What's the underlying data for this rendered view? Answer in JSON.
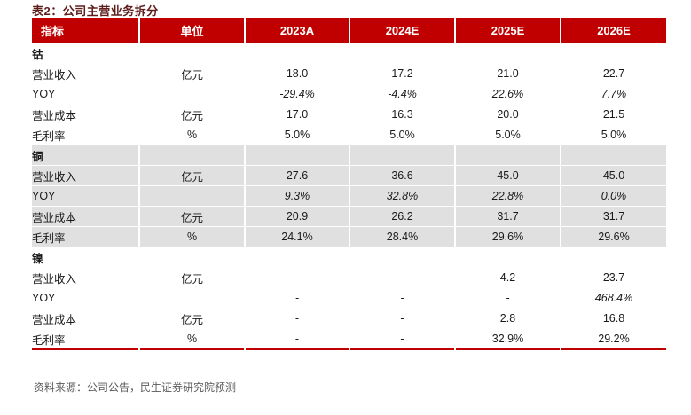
{
  "title": "表2：公司主营业务拆分",
  "table": {
    "columns": [
      "指标",
      "单位",
      "2023A",
      "2024E",
      "2025E",
      "2026E"
    ],
    "sections": [
      {
        "name": "钴",
        "shaded": false,
        "rows": [
          {
            "label": "营业收入",
            "unit": "亿元",
            "values": [
              "18.0",
              "17.2",
              "21.0",
              "22.7"
            ],
            "italic": false
          },
          {
            "label": "YOY",
            "unit": "",
            "values": [
              "-29.4%",
              "-4.4%",
              "22.6%",
              "7.7%"
            ],
            "italic": true
          },
          {
            "label": "营业成本",
            "unit": "亿元",
            "values": [
              "17.0",
              "16.3",
              "20.0",
              "21.5"
            ],
            "italic": false
          },
          {
            "label": "毛利率",
            "unit": "%",
            "values": [
              "5.0%",
              "5.0%",
              "5.0%",
              "5.0%"
            ],
            "italic": false
          }
        ]
      },
      {
        "name": "铜",
        "shaded": true,
        "rows": [
          {
            "label": "营业收入",
            "unit": "亿元",
            "values": [
              "27.6",
              "36.6",
              "45.0",
              "45.0"
            ],
            "italic": false
          },
          {
            "label": "YOY",
            "unit": "",
            "values": [
              "9.3%",
              "32.8%",
              "22.8%",
              "0.0%"
            ],
            "italic": true
          },
          {
            "label": "营业成本",
            "unit": "亿元",
            "values": [
              "20.9",
              "26.2",
              "31.7",
              "31.7"
            ],
            "italic": false
          },
          {
            "label": "毛利率",
            "unit": "%",
            "values": [
              "24.1%",
              "28.4%",
              "29.6%",
              "29.6%"
            ],
            "italic": false
          }
        ]
      },
      {
        "name": "镍",
        "shaded": false,
        "rows": [
          {
            "label": "营业收入",
            "unit": "亿元",
            "values": [
              "-",
              "-",
              "4.2",
              "23.7"
            ],
            "italic": false
          },
          {
            "label": "YOY",
            "unit": "",
            "values": [
              "-",
              "-",
              "-",
              "468.4%"
            ],
            "italic": true
          },
          {
            "label": "营业成本",
            "unit": "亿元",
            "values": [
              "-",
              "-",
              "2.8",
              "16.8"
            ],
            "italic": false
          },
          {
            "label": "毛利率",
            "unit": "%",
            "values": [
              "-",
              "-",
              "32.9%",
              "29.2%"
            ],
            "italic": false
          }
        ]
      }
    ]
  },
  "footer": {
    "source": "资料来源：公司公告，民生证券研究院预测"
  },
  "colors": {
    "header_bg": "#C00000",
    "shaded_row_bg": "#E0E0E0",
    "title_color": "#5E1F1C",
    "footer_color": "#595959",
    "bottom_rule": "#C00000"
  }
}
